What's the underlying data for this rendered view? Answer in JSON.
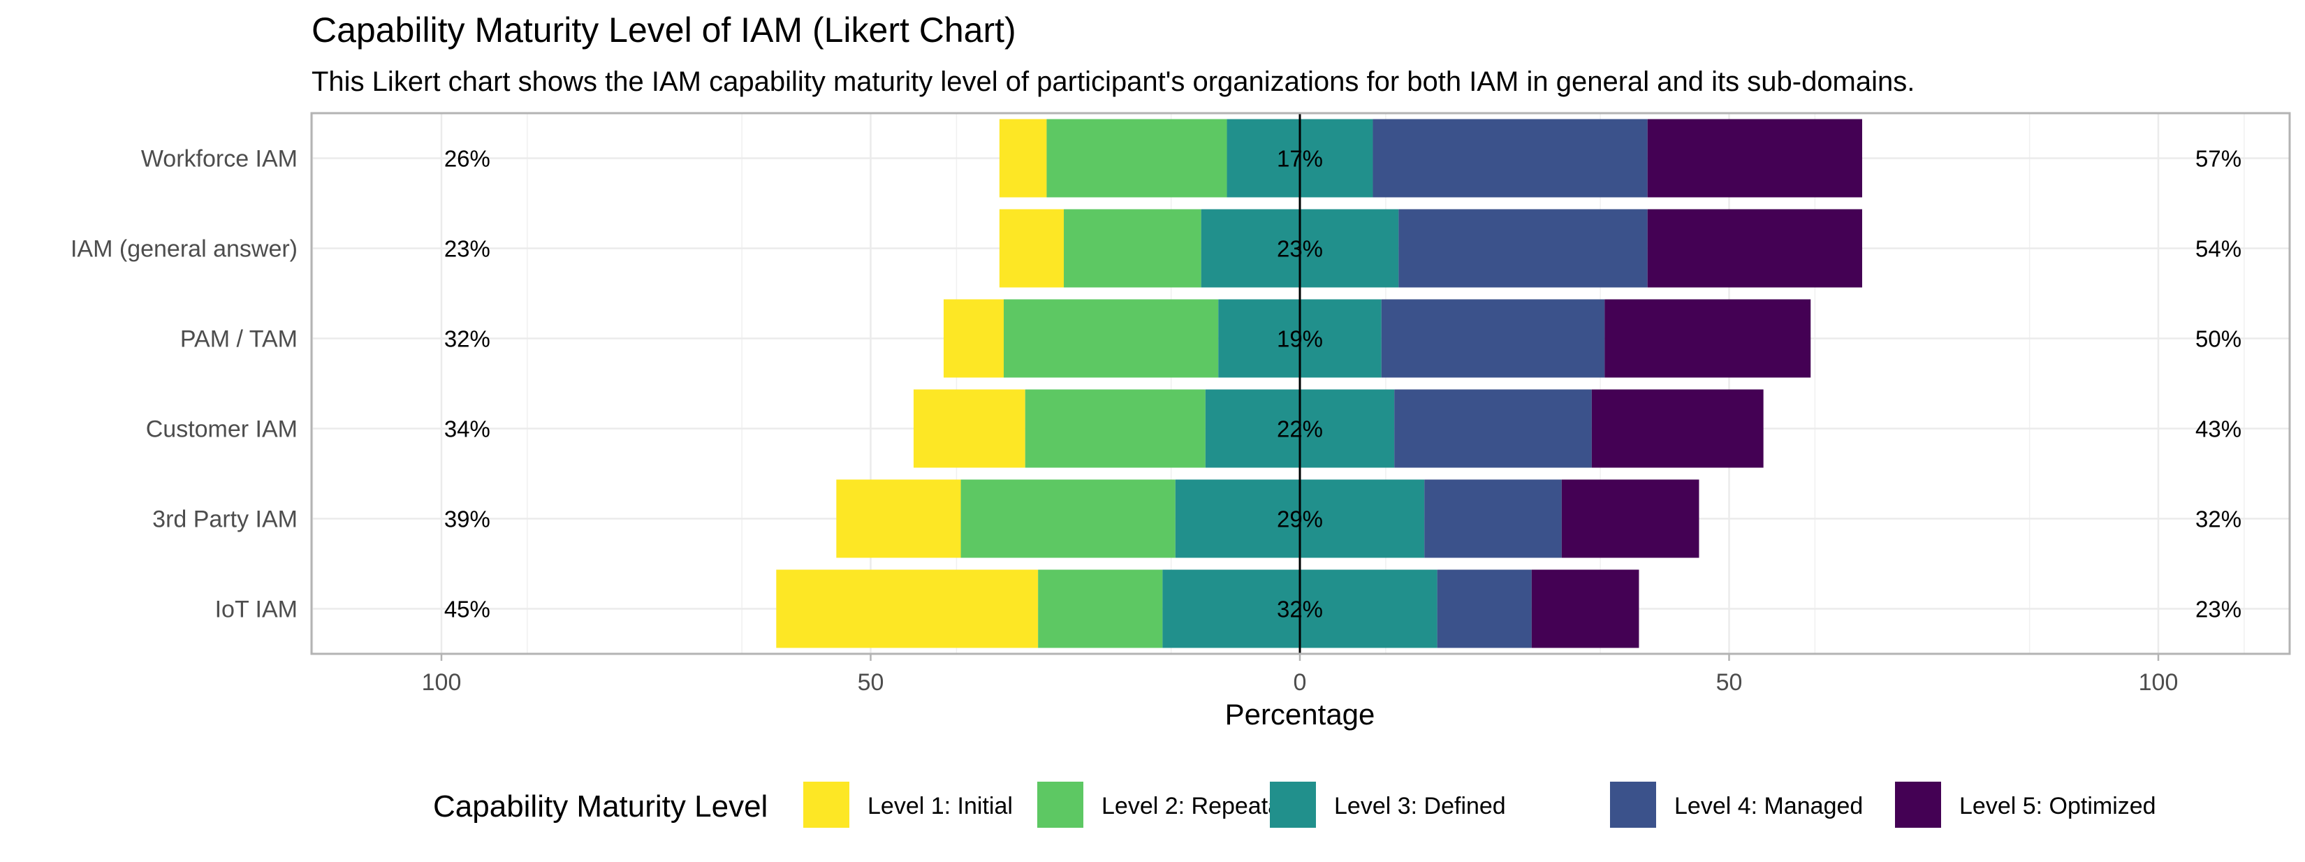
{
  "chart_data": {
    "type": "bar",
    "subtype": "diverging-likert",
    "title": "Capability Maturity Level of IAM (Likert Chart)",
    "subtitle": "This Likert chart shows the IAM capability maturity level of participant's organizations for both IAM in general and its sub-domains.",
    "xlabel": "Percentage",
    "ylabel": "",
    "xlim": [
      -115,
      115
    ],
    "xticks": [
      -100,
      -50,
      0,
      50,
      100
    ],
    "xtick_labels": [
      "100",
      "50",
      "0",
      "50",
      "100"
    ],
    "grid": true,
    "legend_title": "Capability Maturity Level",
    "legend_position": "bottom",
    "categories": [
      "Workforce IAM",
      "IAM (general answer)",
      "PAM / TAM",
      "Customer IAM",
      "3rd Party IAM",
      "IoT IAM"
    ],
    "series": [
      {
        "name": "Level 1: Initial",
        "color": "#FDE725",
        "values": [
          5.5,
          7.5,
          7,
          13,
          14.5,
          30.5
        ]
      },
      {
        "name": "Level 2: Repeatable",
        "color": "#5DC863",
        "values": [
          21,
          16,
          25,
          21,
          25,
          14.5
        ]
      },
      {
        "name": "Level 3: Defined",
        "color": "#21908C",
        "values": [
          17,
          23,
          19,
          22,
          29,
          32
        ]
      },
      {
        "name": "Level 4: Managed",
        "color": "#3B528B",
        "values": [
          32,
          29,
          26,
          23,
          16,
          11
        ]
      },
      {
        "name": "Level 5: Optimized",
        "color": "#440154",
        "values": [
          25,
          25,
          24,
          20,
          16,
          12.5
        ]
      }
    ],
    "left_labels": [
      "26%",
      "23%",
      "32%",
      "34%",
      "39%",
      "45%"
    ],
    "center_labels": [
      "17%",
      "23%",
      "19%",
      "22%",
      "29%",
      "32%"
    ],
    "right_labels": [
      "57%",
      "54%",
      "50%",
      "43%",
      "32%",
      "23%"
    ]
  }
}
